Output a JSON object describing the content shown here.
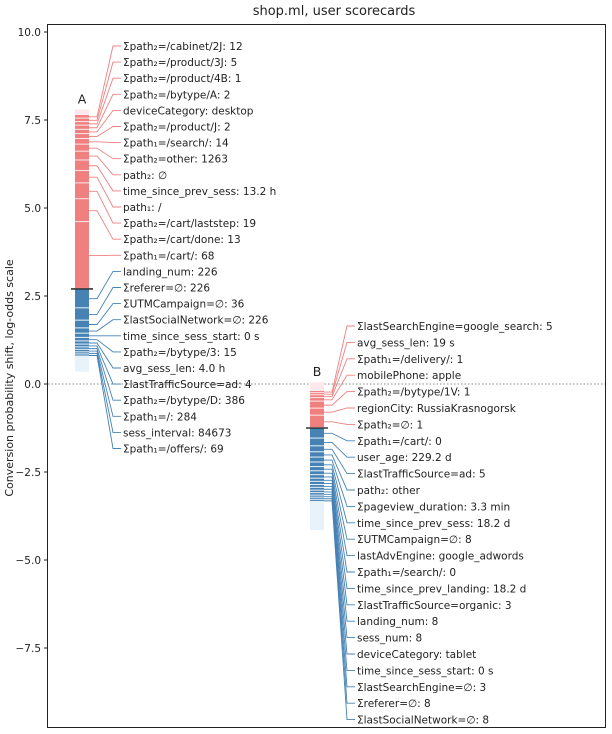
{
  "chart_data": {
    "type": "waterfall-scorecard",
    "title": "shop.ml, user scorecards",
    "xlabel": "",
    "ylabel": "Conversion probability shift, log-odds scale",
    "ylim": [
      -9.6,
      10.2
    ],
    "yticks": [
      10.0,
      7.5,
      5.0,
      2.5,
      0.0,
      -2.5,
      -5.0,
      -7.5
    ],
    "ytick_labels": [
      "10.0",
      "7.5",
      "5.0",
      "2.5",
      "0.0",
      "−2.5",
      "−5.0",
      "−7.5"
    ],
    "zero_line": true,
    "colors": {
      "positive": "#f08080",
      "negative": "#4682b4",
      "positive_faint": "#fde8ec",
      "negative_faint": "#e8f2fb",
      "total_marker": "#333333"
    },
    "cards": [
      {
        "name": "A",
        "top": 7.8,
        "total": 2.7,
        "bottom": 0.35,
        "positive": [
          {
            "label": "Σpath₂=/cabinet/2J: 12",
            "value": 0.1
          },
          {
            "label": "Σpath₂=/product/3J: 5",
            "value": 0.1
          },
          {
            "label": "Σpath₂=/product/4B: 1",
            "value": 0.1
          },
          {
            "label": "Σpath₂=/bytype/A: 2",
            "value": 0.12
          },
          {
            "label": "deviceCategory: desktop",
            "value": 0.12
          },
          {
            "label": "Σpath₂=/product/J: 2",
            "value": 0.14
          },
          {
            "label": "Σpath₁=/search/: 14",
            "value": 0.16
          },
          {
            "label": "Σpath₂=other: 1263",
            "value": 0.2
          },
          {
            "label": "path₂: ∅",
            "value": 0.25
          },
          {
            "label": "time_since_prev_sess: 13.2 h",
            "value": 0.3
          },
          {
            "label": "path₁: /",
            "value": 0.35
          },
          {
            "label": "Σpath₂=/cart/laststep: 19",
            "value": 0.45
          },
          {
            "label": "Σpath₂=/cart/done: 13",
            "value": 0.65
          },
          {
            "label": "Σpath₁=/cart/: 68",
            "value": 1.9
          }
        ],
        "negative": [
          {
            "label": "landing_num: 226",
            "value": -0.55
          },
          {
            "label": "Σreferer=∅: 226",
            "value": -0.35
          },
          {
            "label": "ΣUTMCampaign=∅: 36",
            "value": -0.22
          },
          {
            "label": "ΣlastSocialNetwork=∅: 226",
            "value": -0.15
          },
          {
            "label": "time_since_sess_start: 0 s",
            "value": -0.12
          },
          {
            "label": "Σpath₂=/bytype/3: 15",
            "value": -0.1
          },
          {
            "label": "avg_sess_len: 4.0 h",
            "value": -0.09
          },
          {
            "label": "ΣlastTrafficSource=ad: 4",
            "value": -0.08
          },
          {
            "label": "Σpath₂=/bytype/D: 386",
            "value": -0.07
          },
          {
            "label": "Σpath₁=/: 284",
            "value": -0.07
          },
          {
            "label": "sess_interval: 84673",
            "value": -0.06
          },
          {
            "label": "Σpath₁=/offers/: 69",
            "value": -0.06
          }
        ]
      },
      {
        "name": "B",
        "top": 0.05,
        "total": -1.25,
        "bottom": -4.15,
        "positive": [
          {
            "label": "ΣlastSearchEngine=google_search: 5",
            "value": 0.06
          },
          {
            "label": "avg_sess_len: 19 s",
            "value": 0.06
          },
          {
            "label": "Σpath₁=/delivery/: 1",
            "value": 0.08
          },
          {
            "label": "mobilePhone: apple",
            "value": 0.1
          },
          {
            "label": "Σpath₂=/bytype/1V: 1",
            "value": 0.2
          },
          {
            "label": "regionCity: RussiaKrasnogorsk",
            "value": 0.2
          },
          {
            "label": "Σpath₂=∅: 1",
            "value": 0.35
          }
        ],
        "negative": [
          {
            "label": "Σpath₁=/cart/: 0",
            "value": -0.3
          },
          {
            "label": "user_age: 229.2 d",
            "value": -0.22
          },
          {
            "label": "ΣlastTrafficSource=ad: 5",
            "value": -0.17
          },
          {
            "label": "path₂: other",
            "value": -0.15
          },
          {
            "label": "Σpageview_duration: 3.3 min",
            "value": -0.14
          },
          {
            "label": "time_since_prev_sess: 18.2 d",
            "value": -0.13
          },
          {
            "label": "ΣUTMCampaign=∅: 8",
            "value": -0.12
          },
          {
            "label": "lastAdvEngine: google_adwords",
            "value": -0.11
          },
          {
            "label": "Σpath₁=/search/: 0",
            "value": -0.1
          },
          {
            "label": "time_since_prev_landing: 18.2 d",
            "value": -0.09
          },
          {
            "label": "ΣlastTrafficSource=organic: 3",
            "value": -0.09
          },
          {
            "label": "landing_num: 8",
            "value": -0.08
          },
          {
            "label": "sess_num: 8",
            "value": -0.08
          },
          {
            "label": "deviceCategory: tablet",
            "value": -0.07
          },
          {
            "label": "time_since_sess_start: 0 s",
            "value": -0.07
          },
          {
            "label": "ΣlastSearchEngine=∅: 3",
            "value": -0.06
          },
          {
            "label": "Σreferer=∅: 8",
            "value": -0.06
          },
          {
            "label": "ΣlastSocialNetwork=∅: 8",
            "value": -0.06
          }
        ]
      }
    ]
  }
}
